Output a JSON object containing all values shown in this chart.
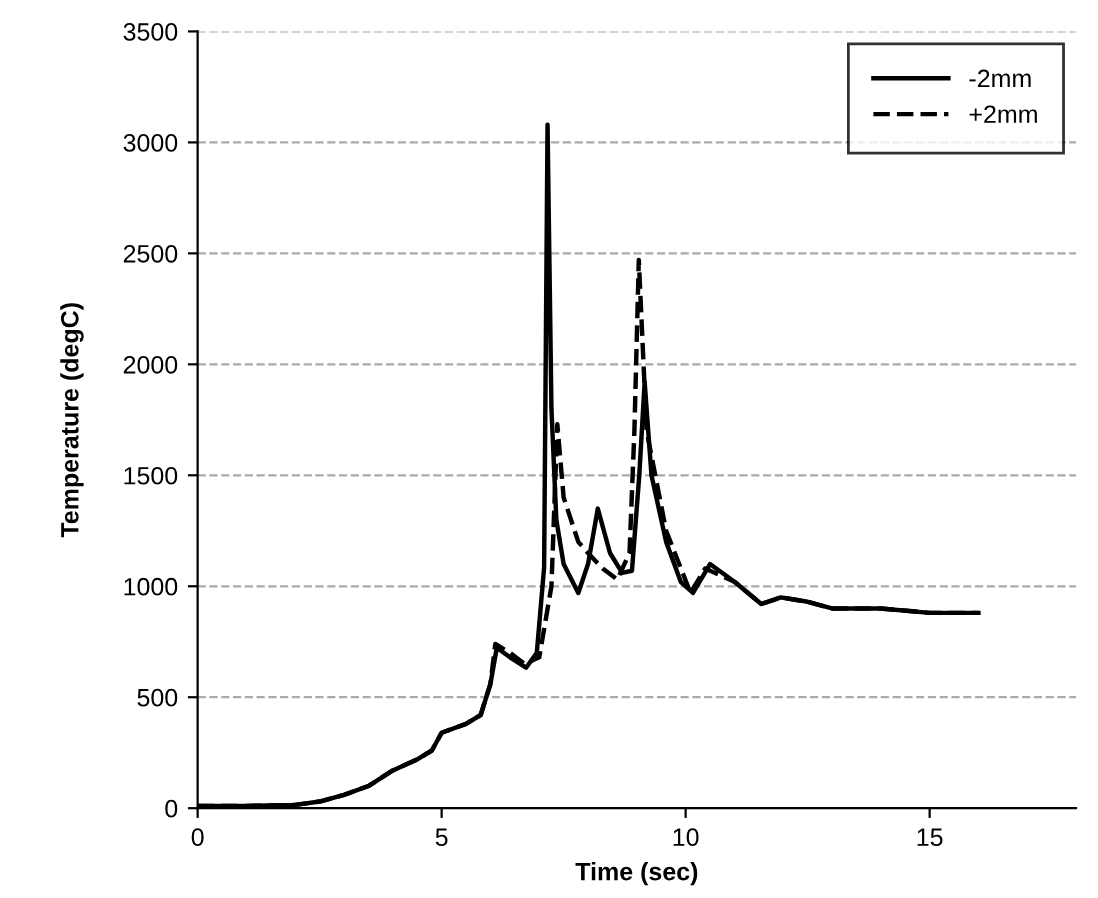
{
  "chart_data": {
    "type": "line",
    "xlabel": "Time (sec)",
    "ylabel": "Temperature (degC)",
    "xlim": [
      0,
      18
    ],
    "xticks": [
      0,
      5,
      10,
      15
    ],
    "ylim": [
      0,
      3500
    ],
    "yticks": [
      0,
      500,
      1000,
      1500,
      2000,
      2500,
      3000,
      3500
    ],
    "grid": "y",
    "legend": "top right",
    "marker": "none",
    "series": [
      {
        "name": "-2mm",
        "color": "#000000",
        "line_style": "solid",
        "x": [
          0,
          1,
          2,
          2.5,
          3,
          3.5,
          4,
          4.5,
          4.8,
          5,
          5.5,
          5.8,
          6.0,
          6.13,
          6.4,
          6.73,
          6.95,
          7.1,
          7.17,
          7.25,
          7.35,
          7.5,
          7.8,
          8.0,
          8.2,
          8.45,
          8.7,
          8.9,
          9.05,
          9.16,
          9.3,
          9.6,
          9.9,
          10.15,
          10.5,
          11,
          11.55,
          11.95,
          12.5,
          13,
          14,
          15,
          16
        ],
        "values": [
          10,
          10,
          15,
          30,
          60,
          100,
          170,
          220,
          260,
          340,
          380,
          420,
          560,
          723,
          680,
          633,
          700,
          1085,
          3080,
          1800,
          1300,
          1100,
          970,
          1100,
          1350,
          1150,
          1060,
          1070,
          1500,
          1920,
          1500,
          1200,
          1020,
          970,
          1100,
          1020,
          920,
          950,
          930,
          900,
          900,
          880,
          880
        ]
      },
      {
        "name": "+2mm",
        "color": "#000000",
        "line_style": "dashed",
        "x": [
          0,
          1,
          2,
          2.5,
          3,
          3.5,
          4,
          4.5,
          4.8,
          5,
          5.5,
          5.8,
          6.0,
          6.1,
          6.4,
          6.7,
          7.0,
          7.25,
          7.37,
          7.5,
          7.8,
          8.0,
          8.3,
          8.6,
          8.85,
          8.95,
          9.04,
          9.2,
          9.6,
          10.1,
          10.4,
          11,
          11.55,
          11.95,
          12.5,
          13,
          14,
          15,
          16
        ],
        "values": [
          10,
          10,
          15,
          30,
          60,
          100,
          170,
          220,
          260,
          340,
          380,
          420,
          560,
          740,
          700,
          650,
          680,
          1000,
          1730,
          1400,
          1200,
          1150,
          1080,
          1030,
          1150,
          1700,
          2470,
          1700,
          1250,
          970,
          1080,
          1020,
          920,
          950,
          930,
          900,
          900,
          880,
          880
        ]
      }
    ]
  }
}
